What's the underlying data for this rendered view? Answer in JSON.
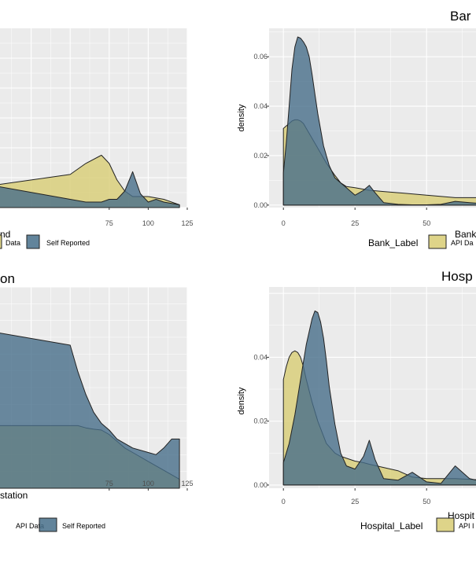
{
  "chart_data": [
    {
      "type": "area",
      "panel": "top-left",
      "title": "",
      "xlabel": "nd",
      "ylabel": "",
      "xlim": [
        0,
        125
      ],
      "x_ticks": [
        75,
        100,
        125
      ],
      "y_ticks": [],
      "grid": true,
      "legend": {
        "placement": "bottom",
        "title": "",
        "entries": [
          "Data",
          "Self Reported"
        ]
      },
      "series": [
        {
          "name": "Data",
          "color": "#d8cd74",
          "x": [
            0,
            50,
            60,
            70,
            75,
            80,
            85,
            90,
            95,
            100,
            110,
            120
          ],
          "values": [
            0.0008,
            0.0012,
            0.0016,
            0.0019,
            0.0016,
            0.001,
            0.0006,
            0.0004,
            0.0004,
            0.0004,
            0.0003,
            0.0001
          ]
        },
        {
          "name": "Self Reported",
          "color": "#476e8a",
          "x": [
            0,
            50,
            60,
            70,
            75,
            80,
            85,
            90,
            95,
            100,
            105,
            110,
            120
          ],
          "values": [
            0.0008,
            0.0003,
            0.0002,
            0.0002,
            0.0003,
            0.0003,
            0.0006,
            0.0013,
            0.0005,
            0.0002,
            0.0003,
            0.0002,
            0.0001
          ]
        }
      ]
    },
    {
      "type": "area",
      "panel": "top-right",
      "title": "Bar",
      "xlabel": "Bank",
      "ylabel": "density",
      "xlim": [
        -5,
        70
      ],
      "ylim": [
        -0.001,
        0.0715
      ],
      "x_ticks": [
        0,
        25,
        50
      ],
      "y_ticks": [
        0.0,
        0.02,
        0.04,
        0.06
      ],
      "y_tick_labels": [
        "0.00",
        "0.02",
        "0.04",
        "0.06"
      ],
      "grid": true,
      "legend": {
        "placement": "bottom",
        "title": "Bank_Label",
        "entries": [
          "API Da"
        ]
      },
      "series": [
        {
          "name": "API Da",
          "color": "#d8cd74",
          "x": [
            0,
            1,
            2,
            3,
            4,
            5,
            6,
            7,
            8,
            10,
            12,
            15,
            18,
            20,
            22,
            25,
            30,
            35,
            40,
            50,
            60,
            65,
            70
          ],
          "values": [
            0.031,
            0.032,
            0.033,
            0.034,
            0.0345,
            0.0345,
            0.034,
            0.033,
            0.031,
            0.027,
            0.023,
            0.017,
            0.012,
            0.009,
            0.0075,
            0.007,
            0.006,
            0.0055,
            0.005,
            0.004,
            0.003,
            0.003,
            0.003
          ]
        },
        {
          "name": "",
          "color": "#476e8a",
          "x": [
            0,
            1,
            2,
            3,
            4,
            5,
            6,
            7,
            8,
            9,
            10,
            11,
            12,
            14,
            16,
            18,
            20,
            22,
            25,
            28,
            30,
            32,
            35,
            40,
            45,
            50,
            55,
            60,
            65,
            70
          ],
          "values": [
            0.013,
            0.025,
            0.04,
            0.055,
            0.064,
            0.068,
            0.0675,
            0.066,
            0.064,
            0.06,
            0.053,
            0.045,
            0.037,
            0.024,
            0.016,
            0.011,
            0.009,
            0.007,
            0.004,
            0.006,
            0.008,
            0.005,
            0.001,
            0.0003,
            0.0001,
            0.0001,
            0.0003,
            0.0015,
            0.001,
            0.0005
          ]
        }
      ]
    },
    {
      "type": "area",
      "panel": "bottom-left",
      "title": "on",
      "xlabel": "station",
      "ylabel": "",
      "xlim": [
        0,
        125
      ],
      "x_ticks": [
        75,
        100,
        125
      ],
      "y_ticks": [],
      "grid": true,
      "legend": {
        "placement": "bottom",
        "title": "",
        "entries": [
          "API Data",
          "Self Reported"
        ]
      },
      "series": [
        {
          "name": "API Data",
          "color": "#d8cd74",
          "x": [
            0,
            50,
            55,
            60,
            65,
            70,
            75,
            80,
            85,
            90,
            100,
            110,
            120
          ],
          "values": [
            0.0014,
            0.0014,
            0.0014,
            0.00135,
            0.00132,
            0.0013,
            0.0012,
            0.00105,
            0.0009,
            0.0008,
            0.0006,
            0.0004,
            0.0002
          ]
        },
        {
          "name": "Self Reported",
          "color": "#476e8a",
          "x": [
            0,
            50,
            55,
            60,
            65,
            70,
            75,
            80,
            90,
            100,
            105,
            110,
            115,
            120
          ],
          "values": [
            0.0035,
            0.0032,
            0.0026,
            0.0021,
            0.0017,
            0.00145,
            0.0013,
            0.0011,
            0.0009,
            0.0008,
            0.00075,
            0.0009,
            0.0011,
            0.0011
          ]
        }
      ]
    },
    {
      "type": "area",
      "panel": "bottom-right",
      "title": "Hosp",
      "xlabel": "Hospit",
      "ylabel": "density",
      "xlim": [
        -5,
        70
      ],
      "ylim": [
        -0.001,
        0.062
      ],
      "x_ticks": [
        0,
        25,
        50
      ],
      "y_ticks": [
        0.0,
        0.02,
        0.04
      ],
      "y_tick_labels": [
        "0.00",
        "0.02",
        "0.04"
      ],
      "grid": true,
      "legend": {
        "placement": "bottom",
        "title": "Hospital_Label",
        "entries": [
          "API I"
        ]
      },
      "series": [
        {
          "name": "API I",
          "color": "#d8cd74",
          "x": [
            0,
            1,
            2,
            3,
            4,
            5,
            6,
            7,
            8,
            10,
            12,
            15,
            18,
            20,
            25,
            28,
            30,
            35,
            40,
            45,
            50,
            55,
            60,
            65,
            70
          ],
          "values": [
            0.033,
            0.037,
            0.04,
            0.0415,
            0.042,
            0.0415,
            0.04,
            0.037,
            0.033,
            0.026,
            0.02,
            0.013,
            0.01,
            0.009,
            0.0075,
            0.007,
            0.0065,
            0.0055,
            0.0045,
            0.0025,
            0.002,
            0.002,
            0.002,
            0.0018,
            0.0015
          ]
        },
        {
          "name": "",
          "color": "#476e8a",
          "x": [
            0,
            2,
            4,
            6,
            8,
            10,
            11,
            12,
            13,
            14,
            15,
            16,
            18,
            20,
            22,
            25,
            28,
            30,
            32,
            35,
            40,
            45,
            50,
            55,
            60,
            65,
            70
          ],
          "values": [
            0.007,
            0.013,
            0.022,
            0.033,
            0.044,
            0.052,
            0.0545,
            0.054,
            0.051,
            0.046,
            0.039,
            0.031,
            0.019,
            0.01,
            0.006,
            0.005,
            0.009,
            0.014,
            0.008,
            0.002,
            0.0015,
            0.004,
            0.001,
            0.0005,
            0.006,
            0.002,
            0.001
          ]
        }
      ]
    }
  ]
}
